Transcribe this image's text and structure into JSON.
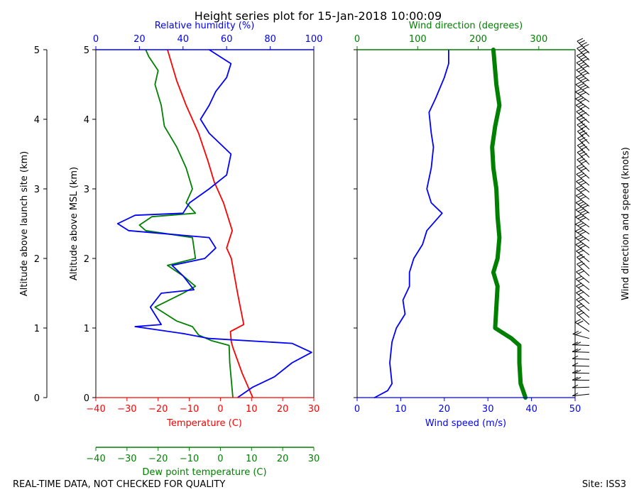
{
  "title": "Height series plot for 15-Jan-2018 10:00:09",
  "footer_left": "REAL-TIME DATA, NOT CHECKED FOR QUALITY",
  "footer_right": "Site: ISS3",
  "colors": {
    "temp": "#ff0000",
    "dew": "#008000",
    "rh": "#0000ff",
    "wspd": "#0000ff",
    "wdir": "#008000",
    "text": "#000000"
  },
  "chart_data": [
    {
      "type": "line",
      "name": "thermo",
      "labels": {
        "launch_axis": "Altitude above launch site (km)",
        "msl_axis": "Altitude above MSL (km)",
        "temperature": "Temperature (C)",
        "rh": "Relative humidity (%)",
        "dewpoint": "Dew point temperature (C)"
      },
      "ylim": [
        0,
        5
      ],
      "yticks": [
        "0",
        "1",
        "2",
        "3",
        "4",
        "5"
      ],
      "temp_lim": [
        -40,
        30
      ],
      "temp_ticks": [
        "−40",
        "−30",
        "−20",
        "−10",
        "0",
        "10",
        "20",
        "30"
      ],
      "rh_lim": [
        0,
        100
      ],
      "rh_ticks": [
        "0",
        "20",
        "40",
        "60",
        "80",
        "100"
      ],
      "series": [
        {
          "name": "Temperature",
          "color": "#ff0000",
          "x_axis": "temp",
          "points": [
            [
              10.4,
              0
            ],
            [
              7,
              0.35
            ],
            [
              4,
              0.72
            ],
            [
              3.5,
              0.8
            ],
            [
              3.2,
              0.95
            ],
            [
              7.5,
              1.05
            ],
            [
              5.5,
              1.5
            ],
            [
              3.5,
              2
            ],
            [
              2,
              2.15
            ],
            [
              3.8,
              2.4
            ],
            [
              1,
              2.8
            ],
            [
              -2,
              3.1
            ],
            [
              -4,
              3.4
            ],
            [
              -7,
              3.8
            ],
            [
              -11,
              4.2
            ],
            [
              -14,
              4.55
            ],
            [
              -17,
              5
            ]
          ]
        },
        {
          "name": "Dew point temperature",
          "color": "#008000",
          "x_axis": "temp",
          "points": [
            [
              4,
              0
            ],
            [
              3.5,
              0.25
            ],
            [
              3,
              0.5
            ],
            [
              2.8,
              0.75
            ],
            [
              -3,
              0.82
            ],
            [
              -7,
              0.9
            ],
            [
              -9,
              1.02
            ],
            [
              -14,
              1.1
            ],
            [
              -21,
              1.3
            ],
            [
              -12,
              1.5
            ],
            [
              -8,
              1.6
            ],
            [
              -12,
              1.75
            ],
            [
              -17,
              1.9
            ],
            [
              -8,
              2
            ],
            [
              -9,
              2.3
            ],
            [
              -24,
              2.4
            ],
            [
              -26,
              2.48
            ],
            [
              -22,
              2.6
            ],
            [
              -8,
              2.65
            ],
            [
              -11,
              2.8
            ],
            [
              -9,
              3.0
            ],
            [
              -11,
              3.3
            ],
            [
              -14,
              3.6
            ],
            [
              -18,
              3.9
            ],
            [
              -19,
              4.2
            ],
            [
              -21,
              4.5
            ],
            [
              -20,
              4.7
            ],
            [
              -23,
              4.9
            ],
            [
              -24,
              5
            ]
          ]
        },
        {
          "name": "Relative humidity",
          "color": "#0000ff",
          "x_axis": "rh",
          "points": [
            [
              65,
              0
            ],
            [
              72,
              0.15
            ],
            [
              82,
              0.3
            ],
            [
              90,
              0.5
            ],
            [
              99,
              0.65
            ],
            [
              90,
              0.78
            ],
            [
              52,
              0.85
            ],
            [
              40,
              0.92
            ],
            [
              18,
              1.02
            ],
            [
              30,
              1.05
            ],
            [
              25,
              1.3
            ],
            [
              30,
              1.5
            ],
            [
              45,
              1.55
            ],
            [
              40,
              1.75
            ],
            [
              35,
              1.9
            ],
            [
              50,
              2
            ],
            [
              55,
              2.15
            ],
            [
              52,
              2.3
            ],
            [
              15,
              2.4
            ],
            [
              10,
              2.5
            ],
            [
              18,
              2.62
            ],
            [
              40,
              2.65
            ],
            [
              43,
              2.8
            ],
            [
              52,
              3.0
            ],
            [
              60,
              3.2
            ],
            [
              62,
              3.5
            ],
            [
              52,
              3.8
            ],
            [
              48,
              4.0
            ],
            [
              52,
              4.2
            ],
            [
              55,
              4.4
            ],
            [
              60,
              4.6
            ],
            [
              62,
              4.8
            ],
            [
              52,
              5
            ]
          ]
        }
      ]
    },
    {
      "type": "line",
      "name": "wind",
      "labels": {
        "wspd": "Wind speed (m/s)",
        "wdir": "Wind direction (degrees)",
        "barbs": "Wind direction and speed (knots)"
      },
      "ylim": [
        0,
        5
      ],
      "wspd_lim": [
        0,
        50
      ],
      "wspd_ticks": [
        "0",
        "10",
        "20",
        "30",
        "40",
        "50"
      ],
      "wdir_lim": [
        0,
        360
      ],
      "wdir_ticks": [
        "0",
        "100",
        "200",
        "300"
      ],
      "series": [
        {
          "name": "Wind speed",
          "color": "#0000ff",
          "x_axis": "wspd",
          "points": [
            [
              4,
              0
            ],
            [
              7,
              0.1
            ],
            [
              8,
              0.2
            ],
            [
              7.5,
              0.5
            ],
            [
              8,
              0.8
            ],
            [
              9,
              1.0
            ],
            [
              11,
              1.2
            ],
            [
              10.5,
              1.4
            ],
            [
              12,
              1.6
            ],
            [
              12,
              1.8
            ],
            [
              13,
              2
            ],
            [
              15,
              2.2
            ],
            [
              16,
              2.4
            ],
            [
              19.5,
              2.65
            ],
            [
              17,
              2.8
            ],
            [
              16,
              3.0
            ],
            [
              17,
              3.3
            ],
            [
              17.5,
              3.6
            ],
            [
              17,
              3.8
            ],
            [
              16.5,
              4.1
            ],
            [
              18,
              4.3
            ],
            [
              20,
              4.6
            ],
            [
              21,
              4.8
            ],
            [
              21,
              5
            ]
          ]
        },
        {
          "name": "Wind direction",
          "color": "#008000",
          "x_axis": "wdir",
          "points": [
            [
              278,
              0
            ],
            [
              270,
              0.2
            ],
            [
              268,
              0.5
            ],
            [
              268,
              0.75
            ],
            [
              255,
              0.85
            ],
            [
              228,
              1.0
            ],
            [
              230,
              1.3
            ],
            [
              232,
              1.6
            ],
            [
              225,
              1.8
            ],
            [
              232,
              2
            ],
            [
              235,
              2.3
            ],
            [
              232,
              2.6
            ],
            [
              230,
              3.0
            ],
            [
              225,
              3.3
            ],
            [
              223,
              3.6
            ],
            [
              228,
              3.9
            ],
            [
              235,
              4.2
            ],
            [
              230,
              4.5
            ],
            [
              227,
              4.8
            ],
            [
              225,
              5
            ]
          ]
        }
      ]
    }
  ]
}
